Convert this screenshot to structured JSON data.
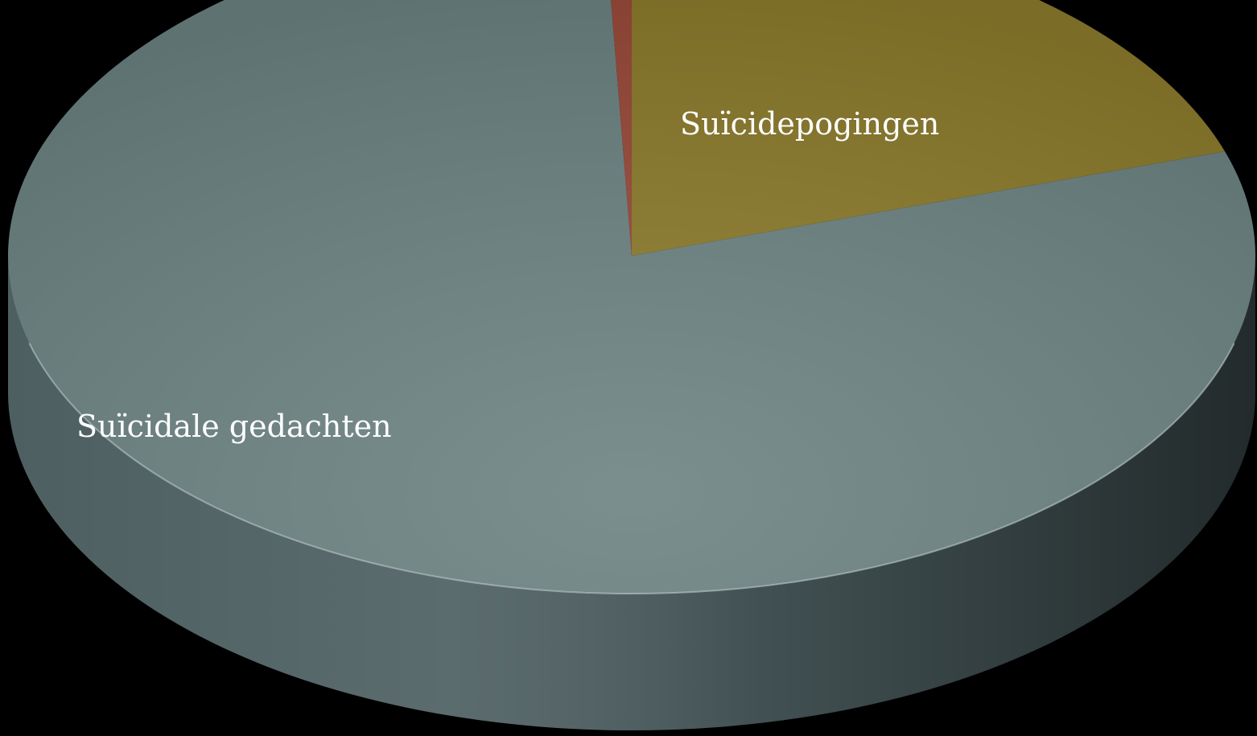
{
  "chart_data": {
    "type": "pie",
    "style": "3d",
    "title": "",
    "slices": [
      {
        "label": "Suïcidepogingen",
        "value": 20.0,
        "color": "#8c7b2c",
        "side_color": "#5e521c",
        "show_label": true
      },
      {
        "label": "Suïcidale gedachten",
        "value": 79.3,
        "color": "#6c8282",
        "side_color": "#4d5f61",
        "show_label": true
      },
      {
        "label": "",
        "value": 0.7,
        "color": "#9a4a3a",
        "side_color": "#6a2f25",
        "show_label": false
      }
    ],
    "legend": false,
    "background": "#000000"
  }
}
